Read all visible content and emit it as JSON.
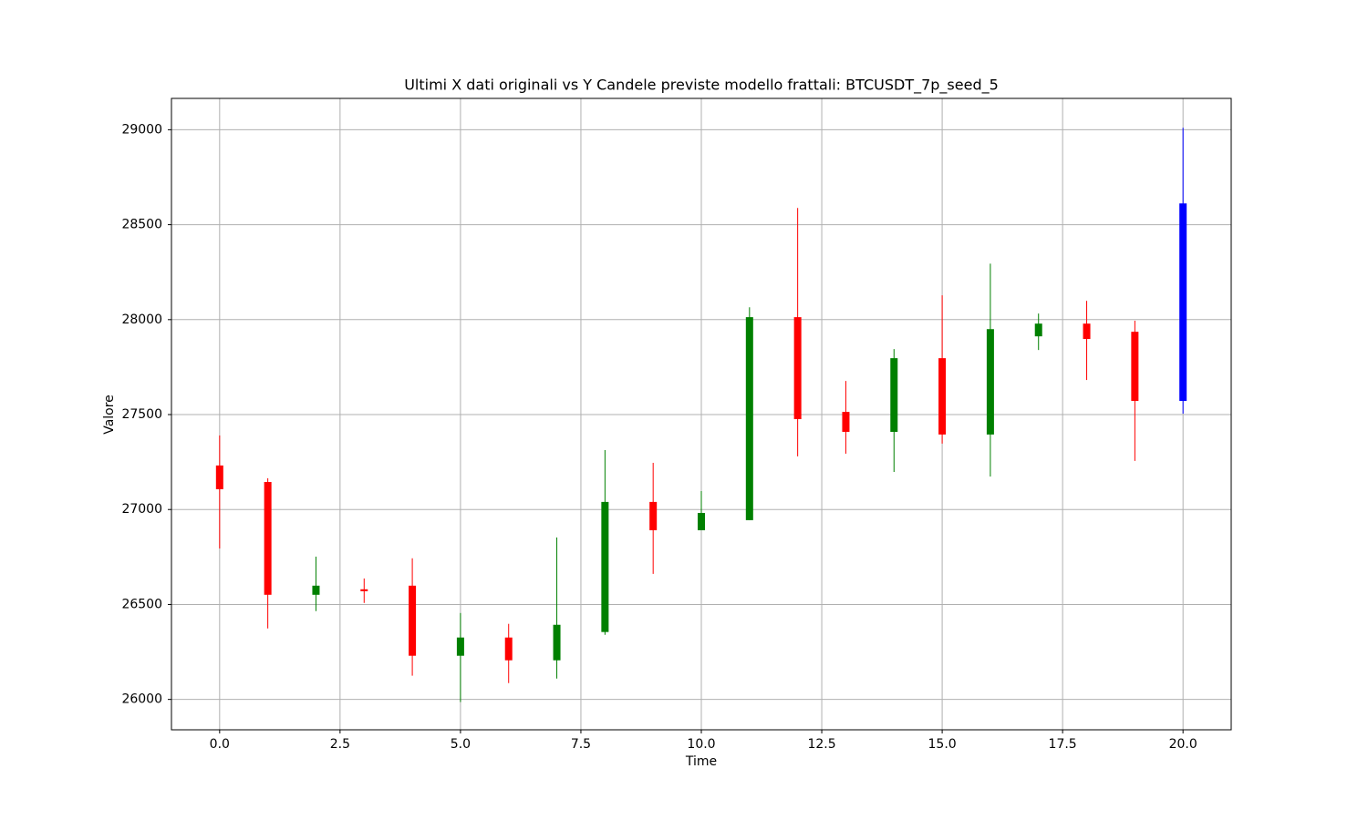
{
  "chart_data": {
    "type": "candlestick",
    "title": "Ultimi X dati originali vs Y Candele previste modello frattali: BTCUSDT_7p_seed_5",
    "xlabel": "Time",
    "ylabel": "Valore",
    "x": [
      0,
      1,
      2,
      3,
      4,
      5,
      6,
      7,
      8,
      9,
      10,
      11,
      12,
      13,
      14,
      15,
      16,
      17,
      18,
      19,
      20
    ],
    "open": [
      27232,
      27145,
      26551,
      26580,
      26599,
      26230,
      26326,
      26206,
      26355,
      27040,
      26891,
      26944,
      28013,
      27514,
      27409,
      27797,
      27395,
      27912,
      27979,
      27936,
      27572
    ],
    "high": [
      27390,
      27165,
      26752,
      26637,
      26743,
      26455,
      26398,
      26853,
      27313,
      27246,
      27097,
      28065,
      28588,
      27677,
      27845,
      28128,
      28295,
      28032,
      28099,
      27994,
      29010
    ],
    "low": [
      26795,
      26374,
      26465,
      26508,
      26125,
      25986,
      26086,
      26110,
      26340,
      26661,
      26891,
      26944,
      27280,
      27294,
      27198,
      27347,
      27174,
      27840,
      27682,
      27256,
      27505
    ],
    "close": [
      27107,
      26551,
      26599,
      26570,
      26230,
      26326,
      26206,
      26393,
      27040,
      26891,
      26982,
      28013,
      27476,
      27409,
      27797,
      27395,
      27950,
      27979,
      27898,
      27572,
      28612
    ],
    "colors": [
      "red",
      "red",
      "green",
      "red",
      "red",
      "green",
      "red",
      "green",
      "green",
      "red",
      "green",
      "green",
      "red",
      "red",
      "green",
      "red",
      "green",
      "green",
      "red",
      "red",
      "blue"
    ],
    "xlim": [
      -1,
      21
    ],
    "ylim": [
      25840,
      29165
    ],
    "xticks": [
      {
        "value": 0,
        "label": "0.0"
      },
      {
        "value": 2.5,
        "label": "2.5"
      },
      {
        "value": 5,
        "label": "5.0"
      },
      {
        "value": 7.5,
        "label": "7.5"
      },
      {
        "value": 10,
        "label": "10.0"
      },
      {
        "value": 12.5,
        "label": "12.5"
      },
      {
        "value": 15,
        "label": "15.0"
      },
      {
        "value": 17.5,
        "label": "17.5"
      },
      {
        "value": 20,
        "label": "20.0"
      }
    ],
    "yticks": [
      26000,
      26500,
      27000,
      27500,
      28000,
      28500,
      29000
    ],
    "grid": true
  }
}
